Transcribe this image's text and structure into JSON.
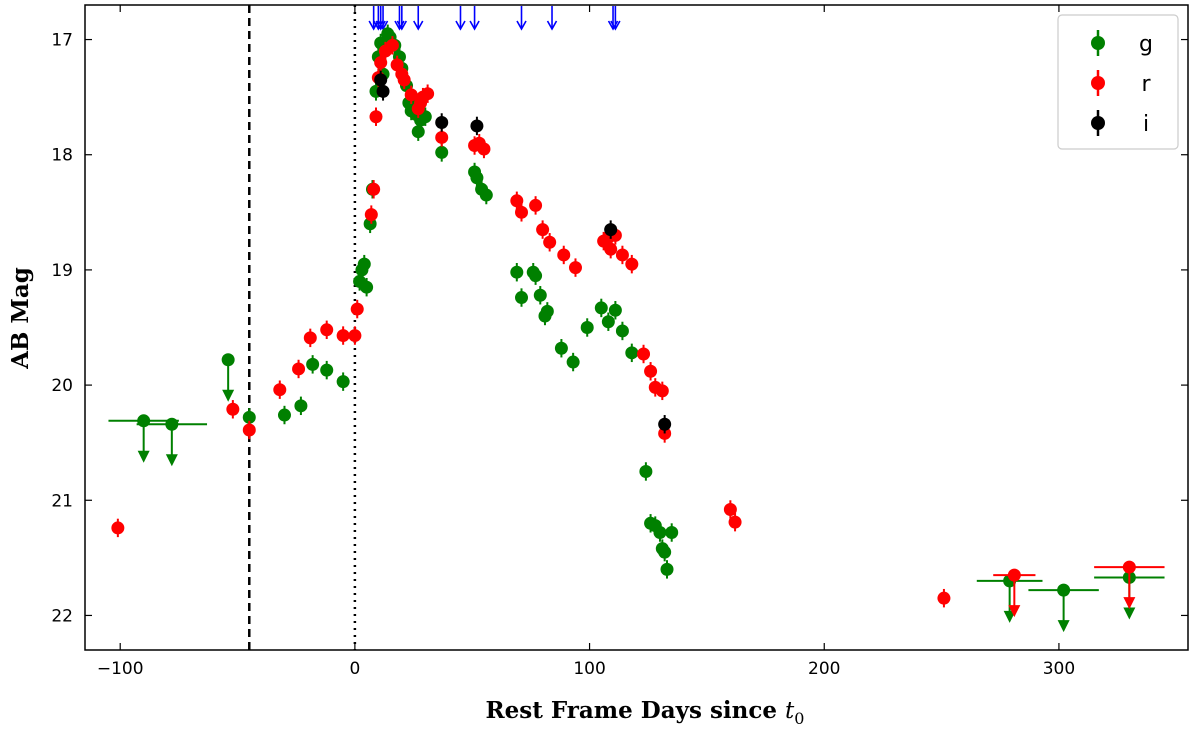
{
  "chart_data": {
    "type": "scatter",
    "title": "",
    "xlabel": "Rest Frame Days since ",
    "xlabel_symbol": "t",
    "xlabel_subscript": "0",
    "ylabel": "AB Mag",
    "xlim": [
      -115,
      355
    ],
    "ylim": [
      22.3,
      16.7
    ],
    "y_inverted": true,
    "x_ticks": [
      -100,
      0,
      100,
      200,
      300
    ],
    "x_tick_labels": [
      "−100",
      "0",
      "100",
      "200",
      "300"
    ],
    "y_ticks": [
      17,
      18,
      19,
      20,
      21,
      22
    ],
    "y_tick_labels": [
      "17",
      "18",
      "19",
      "20",
      "21",
      "22"
    ],
    "grid": false,
    "legend_position": "top-right",
    "vlines": [
      {
        "x": -45,
        "style": "dashed"
      },
      {
        "x": 0,
        "style": "dotted"
      }
    ],
    "epoch_arrows_x": [
      8,
      10,
      11,
      12,
      19,
      20,
      27,
      45,
      51,
      71,
      84,
      110,
      111
    ],
    "series": [
      {
        "name": "g",
        "color": "#008000",
        "points": [
          {
            "x": 6.5,
            "y": 18.6
          },
          {
            "x": 7.5,
            "y": 18.3
          },
          {
            "x": 9,
            "y": 17.45
          },
          {
            "x": 10,
            "y": 17.15
          },
          {
            "x": 11,
            "y": 17.03
          },
          {
            "x": 12,
            "y": 17.3
          },
          {
            "x": 14,
            "y": 16.95
          },
          {
            "x": 15,
            "y": 16.98
          },
          {
            "x": 17,
            "y": 17.05
          },
          {
            "x": 19,
            "y": 17.15
          },
          {
            "x": 20,
            "y": 17.25
          },
          {
            "x": 22,
            "y": 17.4
          },
          {
            "x": 23,
            "y": 17.55
          },
          {
            "x": 24,
            "y": 17.62
          },
          {
            "x": 26,
            "y": 17.65
          },
          {
            "x": 27,
            "y": 17.8
          },
          {
            "x": 28,
            "y": 17.7
          },
          {
            "x": 30,
            "y": 17.67
          },
          {
            "x": 37,
            "y": 17.98
          },
          {
            "x": 51,
            "y": 18.15
          },
          {
            "x": 52,
            "y": 18.2
          },
          {
            "x": 54,
            "y": 18.3
          },
          {
            "x": 56,
            "y": 18.35
          },
          {
            "x": 69,
            "y": 19.02
          },
          {
            "x": 71,
            "y": 19.24
          },
          {
            "x": 76,
            "y": 19.02
          },
          {
            "x": 77,
            "y": 19.05
          },
          {
            "x": 79,
            "y": 19.22
          },
          {
            "x": 81,
            "y": 19.4
          },
          {
            "x": 82,
            "y": 19.36
          },
          {
            "x": 88,
            "y": 19.68
          },
          {
            "x": 93,
            "y": 19.8
          },
          {
            "x": 99,
            "y": 19.5
          },
          {
            "x": 105,
            "y": 19.33
          },
          {
            "x": 108,
            "y": 19.45
          },
          {
            "x": 111,
            "y": 19.35
          },
          {
            "x": 114,
            "y": 19.53
          },
          {
            "x": 118,
            "y": 19.72
          },
          {
            "x": 124,
            "y": 20.75
          },
          {
            "x": 126,
            "y": 21.2
          },
          {
            "x": 128,
            "y": 21.22
          },
          {
            "x": 130,
            "y": 21.28
          },
          {
            "x": 131,
            "y": 21.42
          },
          {
            "x": 132,
            "y": 21.45
          },
          {
            "x": 133,
            "y": 21.6
          },
          {
            "x": 135,
            "y": 21.28
          },
          {
            "x": 2,
            "y": 19.1
          },
          {
            "x": 3,
            "y": 19.0
          },
          {
            "x": 4,
            "y": 18.95
          },
          {
            "x": 5,
            "y": 19.15
          },
          {
            "x": -5,
            "y": 19.97
          },
          {
            "x": -12,
            "y": 19.87
          },
          {
            "x": -18,
            "y": 19.82
          },
          {
            "x": -23,
            "y": 20.18
          },
          {
            "x": -30,
            "y": 20.26
          },
          {
            "x": -45,
            "y": 20.28
          }
        ],
        "upper_limits": [
          {
            "x": -90,
            "y": 20.31,
            "x_err": 15
          },
          {
            "x": -78,
            "y": 20.34,
            "x_err": 15
          },
          {
            "x": -54,
            "y": 19.78,
            "x_err": 2
          },
          {
            "x": 279,
            "y": 21.7,
            "x_err": 14
          },
          {
            "x": 302,
            "y": 21.78,
            "x_err": 15
          },
          {
            "x": 330,
            "y": 21.67,
            "x_err": 15
          }
        ]
      },
      {
        "name": "r",
        "color": "#ff0000",
        "points": [
          {
            "x": -101,
            "y": 21.24
          },
          {
            "x": -52,
            "y": 20.21
          },
          {
            "x": -45,
            "y": 20.39
          },
          {
            "x": -32,
            "y": 20.04
          },
          {
            "x": -24,
            "y": 19.86
          },
          {
            "x": -19,
            "y": 19.59
          },
          {
            "x": -12,
            "y": 19.52
          },
          {
            "x": -5,
            "y": 19.57
          },
          {
            "x": 0,
            "y": 19.57
          },
          {
            "x": 1,
            "y": 19.34
          },
          {
            "x": 7,
            "y": 18.52
          },
          {
            "x": 8,
            "y": 18.3
          },
          {
            "x": 9,
            "y": 17.67
          },
          {
            "x": 10,
            "y": 17.33
          },
          {
            "x": 11,
            "y": 17.2
          },
          {
            "x": 13,
            "y": 17.1
          },
          {
            "x": 16,
            "y": 17.05
          },
          {
            "x": 18,
            "y": 17.22
          },
          {
            "x": 20,
            "y": 17.3
          },
          {
            "x": 21,
            "y": 17.35
          },
          {
            "x": 24,
            "y": 17.48
          },
          {
            "x": 27,
            "y": 17.6
          },
          {
            "x": 28,
            "y": 17.55
          },
          {
            "x": 29,
            "y": 17.5
          },
          {
            "x": 31,
            "y": 17.47
          },
          {
            "x": 37,
            "y": 17.85
          },
          {
            "x": 51,
            "y": 17.92
          },
          {
            "x": 53,
            "y": 17.9
          },
          {
            "x": 55,
            "y": 17.95
          },
          {
            "x": 69,
            "y": 18.4
          },
          {
            "x": 71,
            "y": 18.5
          },
          {
            "x": 77,
            "y": 18.44
          },
          {
            "x": 80,
            "y": 18.65
          },
          {
            "x": 83,
            "y": 18.76
          },
          {
            "x": 89,
            "y": 18.87
          },
          {
            "x": 94,
            "y": 18.98
          },
          {
            "x": 106,
            "y": 18.75
          },
          {
            "x": 108,
            "y": 18.72
          },
          {
            "x": 109,
            "y": 18.82
          },
          {
            "x": 111,
            "y": 18.7
          },
          {
            "x": 114,
            "y": 18.87
          },
          {
            "x": 118,
            "y": 18.95
          },
          {
            "x": 123,
            "y": 19.73
          },
          {
            "x": 126,
            "y": 19.88
          },
          {
            "x": 128,
            "y": 20.02
          },
          {
            "x": 131,
            "y": 20.05
          },
          {
            "x": 132,
            "y": 20.42
          },
          {
            "x": 160,
            "y": 21.08
          },
          {
            "x": 162,
            "y": 21.19
          },
          {
            "x": 251,
            "y": 21.85
          }
        ],
        "upper_limits": [
          {
            "x": 281,
            "y": 21.65,
            "x_err": 9
          },
          {
            "x": 330,
            "y": 21.58,
            "x_err": 15
          }
        ]
      },
      {
        "name": "i",
        "color": "#000000",
        "points": [
          {
            "x": 11,
            "y": 17.35
          },
          {
            "x": 12,
            "y": 17.45
          },
          {
            "x": 37,
            "y": 17.72
          },
          {
            "x": 52,
            "y": 17.75
          },
          {
            "x": 109,
            "y": 18.65
          },
          {
            "x": 132,
            "y": 20.34
          }
        ],
        "upper_limits": []
      }
    ]
  }
}
